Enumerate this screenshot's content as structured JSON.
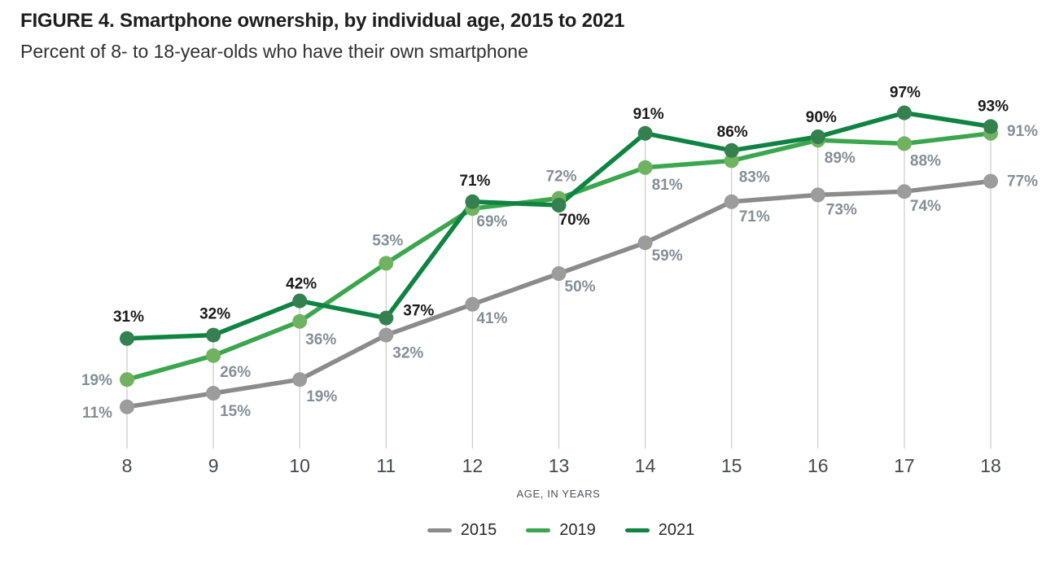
{
  "figure": {
    "title": "FIGURE 4. Smartphone ownership, by individual age, 2015 to 2021",
    "subtitle": "Percent of 8- to 18-year-olds who have their own smartphone"
  },
  "chart_data": {
    "type": "line",
    "title": "FIGURE 4. Smartphone ownership, by individual age, 2015 to 2021",
    "subtitle": "Percent of 8- to 18-year-olds who have their own smartphone",
    "x": [
      8,
      9,
      10,
      11,
      12,
      13,
      14,
      15,
      16,
      17,
      18
    ],
    "xlabel": "AGE, IN YEARS",
    "ylim": [
      0,
      100
    ],
    "y_axis_visible": false,
    "grid": "vertical stub from highest data point down to x-axis at each age",
    "point_label_format": "{value}%",
    "legend_position": "bottom-center",
    "series": [
      {
        "name": "2015",
        "values": [
          11,
          15,
          19,
          32,
          41,
          50,
          59,
          71,
          73,
          74,
          77
        ],
        "line_color": "#8b8b8b",
        "marker_color": "#9c9c9c",
        "label_color": "#858e97"
      },
      {
        "name": "2019",
        "values": [
          19,
          26,
          36,
          53,
          69,
          72,
          81,
          83,
          89,
          88,
          91
        ],
        "line_color": "#3ba64e",
        "marker_color": "#6fb360",
        "label_color": "#858e97"
      },
      {
        "name": "2021",
        "values": [
          31,
          32,
          42,
          37,
          71,
          70,
          91,
          86,
          90,
          97,
          93
        ],
        "line_color": "#0f8341",
        "marker_color": "#35804f",
        "label_color": "#1b1b1b"
      }
    ],
    "axis_style": {
      "gridline_color": "#cbcbcb",
      "tick_label_color": "#414950",
      "xlabel_color": "#4a525a"
    }
  }
}
